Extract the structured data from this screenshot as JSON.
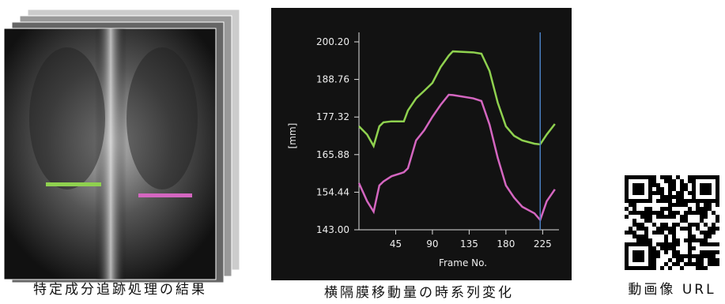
{
  "chart_data": {
    "type": "line",
    "y_label": "[mm]",
    "x_label": "Frame No.",
    "x": [
      0,
      10,
      18,
      25,
      30,
      40,
      55,
      60,
      70,
      80,
      90,
      100,
      110,
      115,
      140,
      150,
      160,
      170,
      180,
      190,
      200,
      215,
      222,
      230,
      240
    ],
    "series": [
      {
        "color": "#8fd14f",
        "values": [
          174.5,
          172,
          168.5,
          174.5,
          175.7,
          176,
          176,
          179.3,
          183,
          185.3,
          187.7,
          192.5,
          196,
          197.3,
          197,
          196.6,
          191.3,
          181.7,
          174.5,
          171.6,
          170.2,
          169.2,
          169,
          172,
          175.2
        ]
      },
      {
        "color": "#d466c0",
        "values": [
          157.2,
          151.7,
          148.5,
          156.5,
          157.7,
          159.3,
          160.5,
          161.7,
          170.2,
          173.3,
          177.4,
          181,
          184.1,
          184,
          183,
          182.2,
          175,
          164.9,
          156.5,
          152.8,
          150,
          148,
          146,
          151.7,
          155.3
        ]
      }
    ],
    "marker_x": 222,
    "marker_color": "#4a7fc1",
    "xlim": [
      0,
      245
    ],
    "xticks": [
      45,
      90,
      135,
      180,
      225
    ],
    "ylim": [
      143,
      200.2
    ],
    "yticks": [
      {
        "value": 143,
        "label": "143.00"
      },
      154.44,
      165.88,
      177.32,
      188.76,
      {
        "value": 200.2,
        "label": "200.20"
      }
    ]
  },
  "captions": {
    "xray": "特定成分追跡処理の結果",
    "chart": "横隔膜移動量の時系列変化",
    "qr": "動画像 URL"
  }
}
